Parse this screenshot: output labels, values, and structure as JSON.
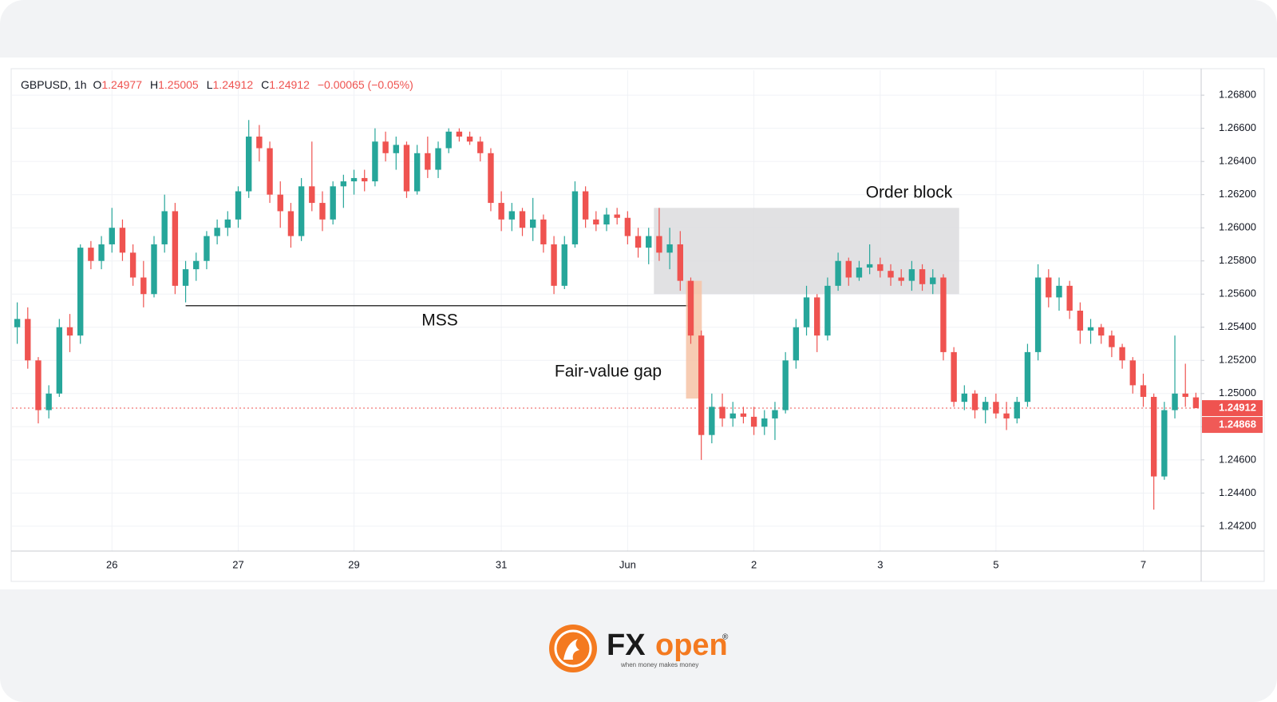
{
  "chart_data": {
    "type": "candlestick",
    "header": {
      "symbol": "GBPUSD, 1h",
      "fields": [
        {
          "key": "O",
          "value": "1.24977"
        },
        {
          "key": "H",
          "value": "1.25005"
        },
        {
          "key": "L",
          "value": "1.24912"
        },
        {
          "key": "C",
          "value": "1.24912"
        }
      ],
      "change": "−0.00065 (−0.05%)"
    },
    "categories": [
      null,
      null,
      null,
      null,
      null,
      null,
      null,
      null,
      null,
      "26",
      null,
      null,
      null,
      null,
      null,
      null,
      null,
      null,
      null,
      null,
      null,
      "27",
      null,
      null,
      null,
      null,
      null,
      null,
      null,
      null,
      null,
      null,
      "29",
      null,
      null,
      null,
      null,
      null,
      null,
      null,
      null,
      null,
      null,
      null,
      null,
      null,
      "31",
      null,
      null,
      null,
      null,
      null,
      null,
      null,
      null,
      null,
      null,
      null,
      "Jun",
      null,
      null,
      null,
      null,
      null,
      null,
      null,
      null,
      null,
      null,
      null,
      "2",
      null,
      null,
      null,
      null,
      null,
      null,
      null,
      null,
      null,
      null,
      null,
      "3",
      null,
      null,
      null,
      null,
      null,
      null,
      null,
      null,
      null,
      null,
      "5",
      null,
      null,
      null,
      null,
      null,
      null,
      null,
      null,
      null,
      null,
      null,
      null,
      null,
      "7",
      null,
      null,
      null,
      null,
      null
    ],
    "open": [
      1.254,
      1.2545,
      1.252,
      1.249,
      1.25,
      1.254,
      1.2535,
      1.2588,
      1.258,
      1.259,
      1.26,
      1.2585,
      1.257,
      1.256,
      1.259,
      1.261,
      1.2565,
      1.2575,
      1.258,
      1.2595,
      1.26,
      1.2605,
      1.2622,
      1.2655,
      1.2648,
      1.262,
      1.261,
      1.2595,
      1.2625,
      1.2615,
      1.2605,
      1.2625,
      1.2628,
      1.263,
      1.2628,
      1.2652,
      1.2645,
      1.265,
      1.2622,
      1.2645,
      1.2635,
      1.2648,
      1.2658,
      1.2655,
      1.2652,
      1.2645,
      1.2615,
      1.2605,
      1.261,
      1.26,
      1.2605,
      1.259,
      1.2565,
      1.259,
      1.2622,
      1.2605,
      1.2602,
      1.2608,
      1.2606,
      1.2595,
      1.2588,
      1.2595,
      1.2585,
      1.259,
      1.2568,
      1.2535,
      1.2475,
      1.2492,
      1.2485,
      1.2488,
      1.2486,
      1.248,
      1.2485,
      1.249,
      1.252,
      1.254,
      1.2558,
      1.2535,
      1.2565,
      1.258,
      1.257,
      1.2576,
      1.2578,
      1.2574,
      1.257,
      1.2568,
      1.2575,
      1.2566,
      1.257,
      1.2525,
      1.2495,
      1.25,
      1.249,
      1.2495,
      1.2488,
      1.2485,
      1.2495,
      1.2525,
      1.257,
      1.2558,
      1.2565,
      1.255,
      1.2538,
      1.254,
      1.2535,
      1.2528,
      1.252,
      1.2505,
      1.2498,
      1.245,
      1.249,
      1.25,
      1.24977
    ],
    "high": [
      1.2555,
      1.2552,
      1.2522,
      1.2505,
      1.2545,
      1.2548,
      1.259,
      1.2592,
      1.2595,
      1.2612,
      1.2605,
      1.259,
      1.258,
      1.2595,
      1.262,
      1.2615,
      1.258,
      1.2585,
      1.2598,
      1.2605,
      1.261,
      1.2625,
      1.2665,
      1.2662,
      1.2652,
      1.2628,
      1.2615,
      1.263,
      1.2652,
      1.2622,
      1.2628,
      1.2632,
      1.2635,
      1.2635,
      1.266,
      1.2658,
      1.2655,
      1.2652,
      1.265,
      1.2655,
      1.2652,
      1.266,
      1.266,
      1.2658,
      1.2655,
      1.2648,
      1.2622,
      1.2615,
      1.2612,
      1.2618,
      1.2608,
      1.2595,
      1.2595,
      1.2628,
      1.2625,
      1.261,
      1.2612,
      1.2612,
      1.261,
      1.26,
      1.26,
      1.2612,
      1.26,
      1.2598,
      1.257,
      1.2538,
      1.25,
      1.25,
      1.2495,
      1.2492,
      1.2492,
      1.249,
      1.2495,
      1.2525,
      1.2545,
      1.2565,
      1.256,
      1.257,
      1.2585,
      1.2582,
      1.258,
      1.259,
      1.2582,
      1.2578,
      1.2575,
      1.258,
      1.2578,
      1.2575,
      1.2572,
      1.2528,
      1.2505,
      1.2502,
      1.2498,
      1.25,
      1.2495,
      1.2498,
      1.253,
      1.2578,
      1.2575,
      1.257,
      1.2568,
      1.2555,
      1.2545,
      1.2542,
      1.2538,
      1.253,
      1.2522,
      1.2512,
      1.25,
      1.2495,
      1.2535,
      1.2518,
      1.25005
    ],
    "low": [
      1.253,
      1.2515,
      1.2482,
      1.2485,
      1.2498,
      1.2525,
      1.253,
      1.2575,
      1.2575,
      1.2585,
      1.258,
      1.2565,
      1.2552,
      1.2558,
      1.2585,
      1.256,
      1.2555,
      1.2568,
      1.2575,
      1.259,
      1.2595,
      1.26,
      1.2618,
      1.264,
      1.2615,
      1.26,
      1.2588,
      1.2592,
      1.261,
      1.2598,
      1.2602,
      1.2612,
      1.262,
      1.2622,
      1.2625,
      1.264,
      1.2635,
      1.2618,
      1.262,
      1.263,
      1.263,
      1.2645,
      1.2652,
      1.265,
      1.264,
      1.261,
      1.2598,
      1.2598,
      1.2595,
      1.2592,
      1.2585,
      1.256,
      1.2563,
      1.2588,
      1.26,
      1.2598,
      1.2598,
      1.2602,
      1.259,
      1.2582,
      1.2578,
      1.258,
      1.2575,
      1.2562,
      1.253,
      1.246,
      1.247,
      1.248,
      1.248,
      1.2482,
      1.2475,
      1.2475,
      1.2472,
      1.2488,
      1.2515,
      1.2535,
      1.2525,
      1.2532,
      1.2562,
      1.2565,
      1.2568,
      1.2572,
      1.257,
      1.2565,
      1.2565,
      1.2562,
      1.2562,
      1.256,
      1.252,
      1.2492,
      1.249,
      1.2485,
      1.2482,
      1.2485,
      1.2478,
      1.2482,
      1.2492,
      1.252,
      1.2552,
      1.255,
      1.2545,
      1.253,
      1.253,
      1.253,
      1.2522,
      1.2515,
      1.25,
      1.2492,
      1.243,
      1.2448,
      1.2485,
      1.2492,
      1.24912
    ],
    "close": [
      1.2545,
      1.252,
      1.249,
      1.25,
      1.254,
      1.2535,
      1.2588,
      1.258,
      1.259,
      1.26,
      1.2585,
      1.257,
      1.256,
      1.259,
      1.261,
      1.2565,
      1.2575,
      1.258,
      1.2595,
      1.26,
      1.2605,
      1.2622,
      1.2655,
      1.2648,
      1.262,
      1.261,
      1.2595,
      1.2625,
      1.2615,
      1.2605,
      1.2625,
      1.2628,
      1.263,
      1.2628,
      1.2652,
      1.2645,
      1.265,
      1.2622,
      1.2645,
      1.2635,
      1.2648,
      1.2658,
      1.2655,
      1.2652,
      1.2645,
      1.2615,
      1.2605,
      1.261,
      1.26,
      1.2605,
      1.259,
      1.2565,
      1.259,
      1.2622,
      1.2605,
      1.2602,
      1.2608,
      1.2606,
      1.2595,
      1.2588,
      1.2595,
      1.2585,
      1.259,
      1.2568,
      1.2535,
      1.2475,
      1.2492,
      1.2485,
      1.2488,
      1.2486,
      1.248,
      1.2485,
      1.249,
      1.252,
      1.254,
      1.2558,
      1.2535,
      1.2565,
      1.258,
      1.257,
      1.2576,
      1.2578,
      1.2574,
      1.257,
      1.2568,
      1.2575,
      1.2566,
      1.257,
      1.2525,
      1.2495,
      1.25,
      1.249,
      1.2495,
      1.2488,
      1.2485,
      1.2495,
      1.2525,
      1.257,
      1.2558,
      1.2565,
      1.255,
      1.2538,
      1.254,
      1.2535,
      1.2528,
      1.252,
      1.2505,
      1.2498,
      1.245,
      1.249,
      1.25,
      1.2498,
      1.24912
    ],
    "up_color": "#26a69a",
    "down_color": "#ef5350",
    "ylim": [
      1.2405,
      1.2695
    ],
    "yticks": [
      {
        "value": 1.268,
        "label": "1.26800"
      },
      {
        "value": 1.266,
        "label": "1.26600"
      },
      {
        "value": 1.264,
        "label": "1.26400"
      },
      {
        "value": 1.262,
        "label": "1.26200"
      },
      {
        "value": 1.26,
        "label": "1.26000"
      },
      {
        "value": 1.258,
        "label": "1.25800"
      },
      {
        "value": 1.256,
        "label": "1.25600"
      },
      {
        "value": 1.254,
        "label": "1.25400"
      },
      {
        "value": 1.252,
        "label": "1.25200"
      },
      {
        "value": 1.25,
        "label": "1.25000"
      },
      {
        "value": 1.248,
        "label": "1.24800"
      },
      {
        "value": 1.246,
        "label": "1.24600"
      },
      {
        "value": 1.244,
        "label": "1.24400"
      },
      {
        "value": 1.242,
        "label": "1.24200"
      }
    ],
    "grid": true,
    "price_tags": [
      {
        "value": 1.24912,
        "label": "1.24912",
        "color": "#ef5350"
      },
      {
        "value": 1.24868,
        "label": "1.24868",
        "color": "#f05a57"
      }
    ],
    "annotations": [
      {
        "type": "zone",
        "label": "Order block",
        "ylim": [
          1.256,
          1.2612
        ],
        "color": "#dcdcde"
      },
      {
        "type": "level",
        "label": "MSS",
        "y": 1.2553,
        "color": "#3a3a3a"
      },
      {
        "type": "zone",
        "label": "Fair-value gap",
        "ylim": [
          1.2497,
          1.2568
        ],
        "color": "#f6c3a6"
      }
    ]
  },
  "logo": {
    "fx": "FX",
    "open": "open",
    "registered": "®",
    "tagline": "when money makes money"
  }
}
